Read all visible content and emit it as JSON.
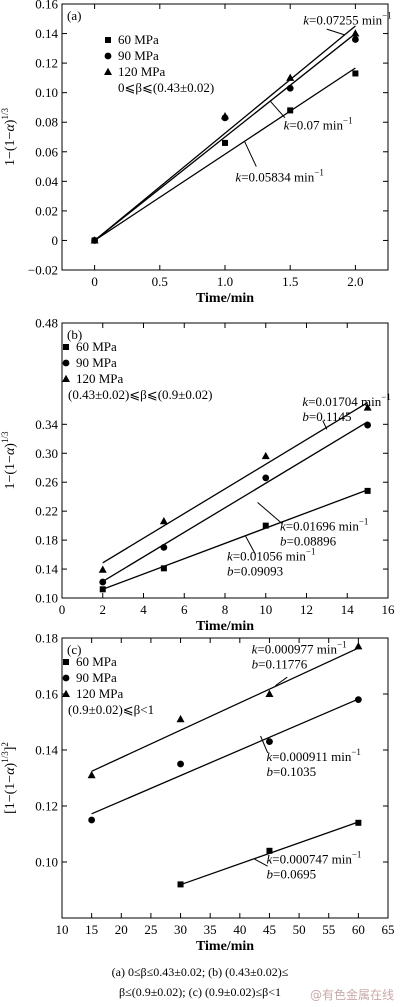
{
  "chart_data": [
    {
      "type": "scatter",
      "panel_label": "(a)",
      "xlabel": "Time/min",
      "ylabel": "1−(1−α)^1/3",
      "ylabel_base": "1−(1−",
      "ylabel_alpha": "α",
      "ylabel_close": ")",
      "ylabel_sup": "1/3",
      "xlim": [
        -0.25,
        2.25
      ],
      "ylim": [
        -0.02,
        0.16
      ],
      "xticks": [
        0,
        0.5,
        1.0,
        1.5,
        2.0
      ],
      "xtick_labels": [
        "0",
        "0.5",
        "1.0",
        "1.5",
        "2.0"
      ],
      "yticks": [
        -0.02,
        0,
        0.02,
        0.04,
        0.06,
        0.08,
        0.1,
        0.12,
        0.14,
        0.16
      ],
      "ytick_labels": [
        "−0.02",
        "0",
        "0.02",
        "0.04",
        "0.06",
        "0.08",
        "0.10",
        "0.12",
        "0.14",
        "0.16"
      ],
      "legend_position": "top-left",
      "condition": "0⩽β⩽(0.43±0.02)",
      "series": [
        {
          "name": "60 MPa",
          "marker": "square",
          "x": [
            0,
            1,
            1.5,
            2
          ],
          "y": [
            0,
            0.066,
            0.088,
            0.113
          ],
          "fit": {
            "x": [
              0,
              2
            ],
            "y": [
              0,
              0.1167
            ]
          }
        },
        {
          "name": "90 MPa",
          "marker": "circle",
          "x": [
            0,
            1,
            1.5,
            2
          ],
          "y": [
            0,
            0.083,
            0.103,
            0.136
          ],
          "fit": {
            "x": [
              0,
              2
            ],
            "y": [
              0,
              0.14
            ]
          }
        },
        {
          "name": "120 MPa",
          "marker": "triangle",
          "x": [
            0,
            1,
            1.5,
            2
          ],
          "y": [
            0,
            0.084,
            0.11,
            0.14
          ],
          "fit": {
            "x": [
              0,
              2
            ],
            "y": [
              0,
              0.1451
            ]
          }
        }
      ],
      "annotations": [
        {
          "text_k": "k",
          "text_rest": "=0.07255 min",
          "sup": "−1",
          "x": 1.6,
          "y": 0.146,
          "lead": [
            [
              1.78,
              0.143
            ],
            [
              1.92,
              0.139
            ]
          ]
        },
        {
          "text_k": "k",
          "text_rest": "=0.07 min",
          "sup": "−1",
          "x": 1.45,
          "y": 0.075,
          "lead": [
            [
              1.46,
              0.083
            ],
            [
              1.35,
              0.094
            ]
          ]
        },
        {
          "text_k": "k",
          "text_rest": "=0.05834 min",
          "sup": "−1",
          "x": 1.08,
          "y": 0.04,
          "lead": [
            [
              1.24,
              0.05
            ],
            [
              1.15,
              0.067
            ]
          ]
        }
      ]
    },
    {
      "type": "scatter",
      "panel_label": "(b)",
      "xlabel": "Time/min",
      "ylabel": "1−(1−α)^1/3",
      "ylabel_base": "1−(1−",
      "ylabel_alpha": "α",
      "ylabel_close": ")",
      "ylabel_sup": "1/3",
      "xlim": [
        0,
        16
      ],
      "ylim": [
        0.1,
        0.48
      ],
      "xticks": [
        0,
        2,
        4,
        6,
        8,
        10,
        12,
        14,
        16
      ],
      "xtick_labels": [
        "0",
        "2",
        "4",
        "6",
        "8",
        "10",
        "12",
        "14",
        "16"
      ],
      "yticks": [
        0.1,
        0.14,
        0.18,
        0.22,
        0.26,
        0.3,
        0.34,
        0.48
      ],
      "ytick_labels": [
        "0.10",
        "0.14",
        "0.18",
        "0.22",
        "0.26",
        "0.30",
        "0.34",
        "0.48"
      ],
      "ytick_note": "axis labels jump from 0.34 to 0.48 as printed",
      "legend_position": "top-left",
      "condition": "(0.43±0.02)⩽β⩽(0.9±0.02)",
      "series": [
        {
          "name": "60 MPa",
          "marker": "square",
          "x": [
            2,
            5,
            10,
            15
          ],
          "y": [
            0.112,
            0.141,
            0.2,
            0.248
          ],
          "fit": {
            "x": [
              2,
              15
            ],
            "y": [
              0.1121,
              0.2494
            ]
          }
        },
        {
          "name": "90 MPa",
          "marker": "circle",
          "x": [
            2,
            5,
            10,
            15
          ],
          "y": [
            0.122,
            0.17,
            0.266,
            0.339
          ],
          "fit": {
            "x": [
              2,
              15
            ],
            "y": [
              0.1229,
              0.3434
            ]
          }
        },
        {
          "name": "120 MPa",
          "marker": "triangle",
          "x": [
            2,
            5,
            10,
            15
          ],
          "y": [
            0.139,
            0.206,
            0.296,
            0.363
          ],
          "fit": {
            "x": [
              2,
              15
            ],
            "y": [
              0.1486,
              0.37
            ]
          }
        }
      ],
      "annotations": [
        {
          "lines": [
            {
              "k": "k",
              "rest": "=0.01704 min",
              "sup": "−1"
            },
            {
              "k": "b",
              "rest": "=0.1145",
              "sup": ""
            }
          ],
          "x": 11.8,
          "y": 0.365,
          "lead": [
            [
              12.8,
              0.345
            ],
            [
              13.0,
              0.333
            ]
          ]
        },
        {
          "lines": [
            {
              "k": "k",
              "rest": "=0.01696 min",
              "sup": "−1"
            },
            {
              "k": "b",
              "rest": "=0.08896",
              "sup": ""
            }
          ],
          "x": 10.7,
          "y": 0.193,
          "lead": [
            [
              10.8,
              0.203
            ],
            [
              9.6,
              0.232
            ]
          ]
        },
        {
          "lines": [
            {
              "k": "k",
              "rest": "=0.01056 min",
              "sup": "−1"
            },
            {
              "k": "b",
              "rest": "=0.09093",
              "sup": ""
            }
          ],
          "x": 8.1,
          "y": 0.152,
          "lead": [
            [
              9.5,
              0.16
            ],
            [
              9.0,
              0.186
            ]
          ]
        }
      ]
    },
    {
      "type": "scatter",
      "panel_label": "(c)",
      "xlabel": "Time/min",
      "ylabel": "[1−(1−α)^1/3]^2",
      "ylabel_base": "[1−(1−",
      "ylabel_alpha": "α",
      "ylabel_close": ")",
      "ylabel_sup": "1/3",
      "ylabel_end": "]",
      "ylabel_sup2": "2",
      "xlim": [
        10,
        65
      ],
      "ylim": [
        0.08,
        0.18
      ],
      "xticks": [
        10,
        15,
        20,
        25,
        30,
        35,
        40,
        45,
        50,
        55,
        60,
        65
      ],
      "xtick_labels": [
        "10",
        "15",
        "20",
        "25",
        "30",
        "35",
        "40",
        "45",
        "50",
        "55",
        "60",
        "65"
      ],
      "yticks": [
        0.1,
        0.12,
        0.14,
        0.16,
        0.18
      ],
      "ytick_labels": [
        "0.10",
        "0.12",
        "0.14",
        "0.16",
        "0.18"
      ],
      "legend_position": "top-left",
      "condition": "(0.9±0.02)⩽β<1",
      "series": [
        {
          "name": "60 MPa",
          "marker": "square",
          "x": [
            30,
            45,
            60
          ],
          "y": [
            0.092,
            0.104,
            0.114
          ],
          "fit": {
            "x": [
              30,
              60
            ],
            "y": [
              0.0919,
              0.1143
            ]
          }
        },
        {
          "name": "90 MPa",
          "marker": "circle",
          "x": [
            15,
            30,
            45,
            60
          ],
          "y": [
            0.115,
            0.135,
            0.143,
            0.158
          ],
          "fit": {
            "x": [
              15,
              60
            ],
            "y": [
              0.1172,
              0.1582
            ]
          }
        },
        {
          "name": "120 MPa",
          "marker": "triangle",
          "x": [
            15,
            30,
            45,
            60
          ],
          "y": [
            0.131,
            0.151,
            0.16,
            0.177
          ],
          "fit": {
            "x": [
              15,
              60
            ],
            "y": [
              0.1324,
              0.1764
            ]
          }
        }
      ],
      "annotations": [
        {
          "lines": [
            {
              "k": "k",
              "rest": "=0.000977 min",
              "sup": "−1"
            },
            {
              "k": "b",
              "rest": "=0.11776",
              "sup": ""
            }
          ],
          "x": 42,
          "y": 0.1745,
          "lead": [
            [
              48,
              0.166
            ],
            [
              46,
              0.163
            ]
          ]
        },
        {
          "lines": [
            {
              "k": "k",
              "rest": "=0.000911 min",
              "sup": "−1"
            },
            {
              "k": "b",
              "rest": "=0.1035",
              "sup": ""
            }
          ],
          "x": 44.5,
          "y": 0.136,
          "lead": [
            [
              44.7,
              0.139
            ],
            [
              43.5,
              0.145
            ]
          ]
        },
        {
          "lines": [
            {
              "k": "k",
              "rest": "=0.000747 min",
              "sup": "−1"
            },
            {
              "k": "b",
              "rest": "=0.0695",
              "sup": ""
            }
          ],
          "x": 44.5,
          "y": 0.0995,
          "lead": [
            [
              44.7,
              0.0985
            ],
            [
              42.5,
              0.101
            ]
          ]
        }
      ]
    }
  ],
  "caption": {
    "line1": "(a)   0≤β≤0.43±0.02;   (b)   (0.43±0.02)≤",
    "line2": "β≤(0.9±0.02); (c) (0.9±0.02)≤β<1"
  },
  "watermark": "@有色金属在线"
}
